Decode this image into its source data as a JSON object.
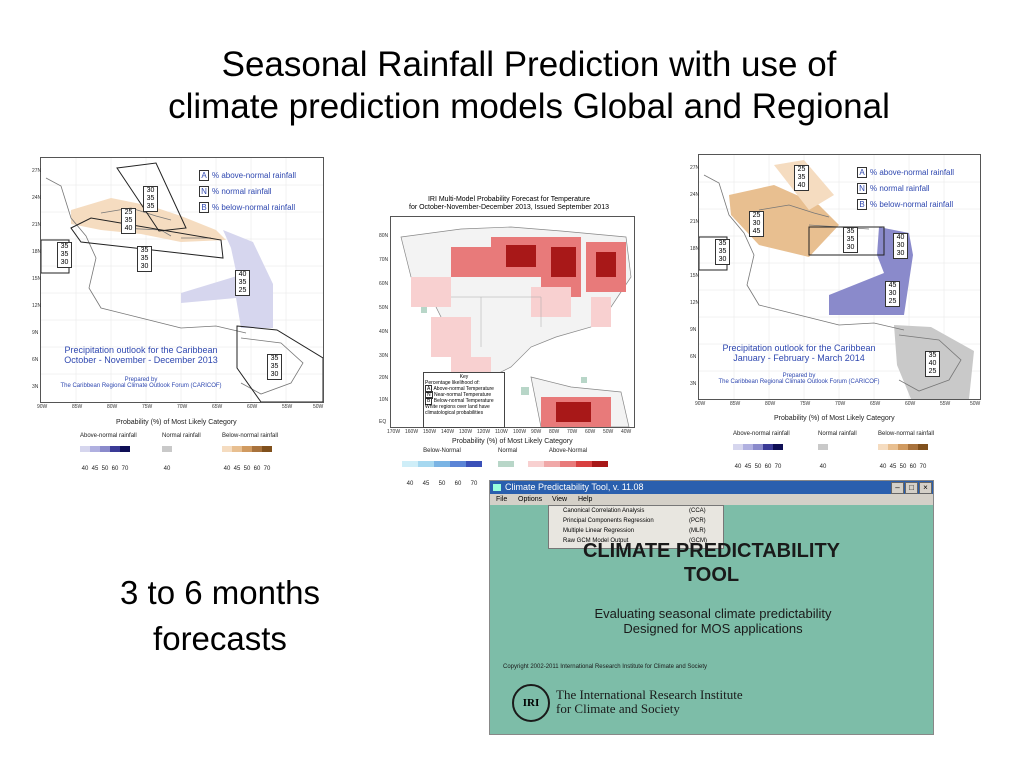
{
  "slide": {
    "title_line1": "Seasonal Rainfall Prediction with use of",
    "title_line2": "climate prediction models Global and Regional",
    "subtitle_line1": "3 to 6 months",
    "subtitle_line2": "forecasts"
  },
  "map_left": {
    "key": [
      {
        "code": "A",
        "text": "% above-normal rainfall"
      },
      {
        "code": "N",
        "text": "% normal rainfall"
      },
      {
        "code": "B",
        "text": "% below-normal rainfall"
      }
    ],
    "outlook_line1": "Precipitation outlook for the Caribbean",
    "outlook_line2": "October - November - December 2013",
    "prepared_line1": "Prepared by",
    "prepared_line2": "The Caribbean Regional Climate Outlook Forum (CARICOF)",
    "lat_ticks": [
      "27N",
      "24N",
      "21N",
      "18N",
      "15N",
      "12N",
      "9N",
      "6N",
      "3N"
    ],
    "lon_ticks": [
      "90W",
      "85W",
      "80W",
      "75W",
      "70W",
      "65W",
      "60W",
      "55W",
      "50W"
    ],
    "boxes": [
      {
        "v": [
          "30",
          "35",
          "35"
        ]
      },
      {
        "v": [
          "25",
          "35",
          "40"
        ]
      },
      {
        "v": [
          "35",
          "35",
          "30"
        ]
      },
      {
        "v": [
          "35",
          "35",
          "30"
        ]
      },
      {
        "v": [
          "40",
          "35",
          "25"
        ]
      },
      {
        "v": [
          "35",
          "35",
          "30"
        ]
      }
    ],
    "legend_title": "Probability (%) of Most Likely Category",
    "cat_above": "Above-normal rainfall",
    "cat_normal": "Normal rainfall",
    "cat_below": "Below-normal rainfall",
    "above_nums": [
      "40",
      "45",
      "50",
      "60",
      "70"
    ],
    "normal_nums": [
      "40"
    ],
    "below_nums": [
      "40",
      "45",
      "50",
      "60",
      "70"
    ]
  },
  "map_middle": {
    "title_line1": "IRI Multi-Model Probability Forecast for Temperature",
    "title_line2": "for October-November-December 2013, Issued September 2013",
    "lat_ticks": [
      "80N",
      "70N",
      "60N",
      "50N",
      "40N",
      "30N",
      "20N",
      "10N",
      "EQ"
    ],
    "lon_ticks": [
      "170W",
      "160W",
      "150W",
      "140W",
      "130W",
      "120W",
      "110W",
      "100W",
      "90W",
      "80W",
      "70W",
      "60W",
      "50W",
      "40W"
    ],
    "key_title": "Key",
    "key_subtitle": "Percentage likelihood of:",
    "key_items": [
      {
        "code": "A",
        "text": "Above-normal Temperature"
      },
      {
        "code": "N",
        "text": "Near-normal Temperature"
      },
      {
        "code": "B",
        "text": "Below-normal Temperature"
      }
    ],
    "key_note": "White regions over land have climatological probabilities",
    "legend_title": "Probability (%) of Most Likely Category",
    "cat_below": "Below-Normal",
    "cat_normal": "Normal",
    "cat_above": "Above-Normal",
    "below_nums": [
      "40",
      "45",
      "50",
      "60",
      "70"
    ],
    "normal_nums": [
      "40"
    ],
    "above_nums": [
      "40",
      "45",
      "50",
      "60",
      "70"
    ]
  },
  "map_right": {
    "key": [
      {
        "code": "A",
        "text": "% above-normal rainfall"
      },
      {
        "code": "N",
        "text": "% normal rainfall"
      },
      {
        "code": "B",
        "text": "% below-normal rainfall"
      }
    ],
    "outlook_line1": "Precipitation outlook for the Caribbean",
    "outlook_line2": "January - February - March 2014",
    "prepared_line1": "Prepared by",
    "prepared_line2": "The Caribbean Regional Climate Outlook Forum (CARICOF)",
    "lat_ticks": [
      "27N",
      "24N",
      "21N",
      "18N",
      "15N",
      "12N",
      "9N",
      "6N",
      "3N"
    ],
    "lon_ticks": [
      "90W",
      "85W",
      "80W",
      "75W",
      "70W",
      "65W",
      "60W",
      "55W",
      "50W"
    ],
    "boxes": [
      {
        "v": [
          "25",
          "35",
          "40"
        ]
      },
      {
        "v": [
          "25",
          "30",
          "45"
        ]
      },
      {
        "v": [
          "35",
          "35",
          "30"
        ]
      },
      {
        "v": [
          "35",
          "35",
          "30"
        ]
      },
      {
        "v": [
          "40",
          "30",
          "30"
        ]
      },
      {
        "v": [
          "45",
          "30",
          "25"
        ]
      },
      {
        "v": [
          "35",
          "40",
          "25"
        ]
      }
    ],
    "legend_title": "Probability (%) of Most Likely Category",
    "cat_above": "Above-normal rainfall",
    "cat_normal": "Normal rainfall",
    "cat_below": "Below-normal rainfall",
    "above_nums": [
      "40",
      "45",
      "50",
      "60",
      "70"
    ],
    "normal_nums": [
      "40"
    ],
    "below_nums": [
      "40",
      "45",
      "50",
      "60",
      "70"
    ]
  },
  "cpt": {
    "window_title": "Climate Predictability Tool, v. 11.08",
    "menu": [
      "File",
      "Options",
      "View",
      "Help"
    ],
    "dropdown": [
      {
        "label": "Canonical Correlation Analysis",
        "short": "(CCA)"
      },
      {
        "label": "Principal Components Regression",
        "short": "(PCR)"
      },
      {
        "label": "Multiple Linear Regression",
        "short": "(MLR)"
      },
      {
        "label": "Raw GCM Model Output",
        "short": "(GCM)"
      }
    ],
    "heading_line1": "CLIMATE PREDICTABILITY",
    "heading_line2": "TOOL",
    "desc_line1": "Evaluating seasonal climate predictability",
    "desc_line2": "Designed for MOS applications",
    "copyright": "Copyright 2002-2011 International Research Institute for Climate and Society",
    "logo_text": "IRI",
    "institute_line1": "The International Research Institute",
    "institute_line2": "for Climate and Society"
  },
  "colors": {
    "above_rain": [
      "#d6d6ee",
      "#b0b0e0",
      "#8a8acb",
      "#3a3a96",
      "#0e0e55"
    ],
    "normal": "#c9c9c9",
    "below_rain": [
      "#f5dcc0",
      "#e8bf90",
      "#d09a60",
      "#a8723c",
      "#80501c"
    ],
    "temp_below": [
      "#cfeef8",
      "#a6d8f0",
      "#7ab4e4",
      "#5a84d6",
      "#3a50b8"
    ],
    "temp_normal": "#b8d6c8",
    "temp_above": [
      "#f8d0d0",
      "#f0a8a8",
      "#e87a7a",
      "#d84040",
      "#a81818"
    ],
    "cpt_bg": "#7dbda8",
    "titlebar": "#2a5fae"
  }
}
